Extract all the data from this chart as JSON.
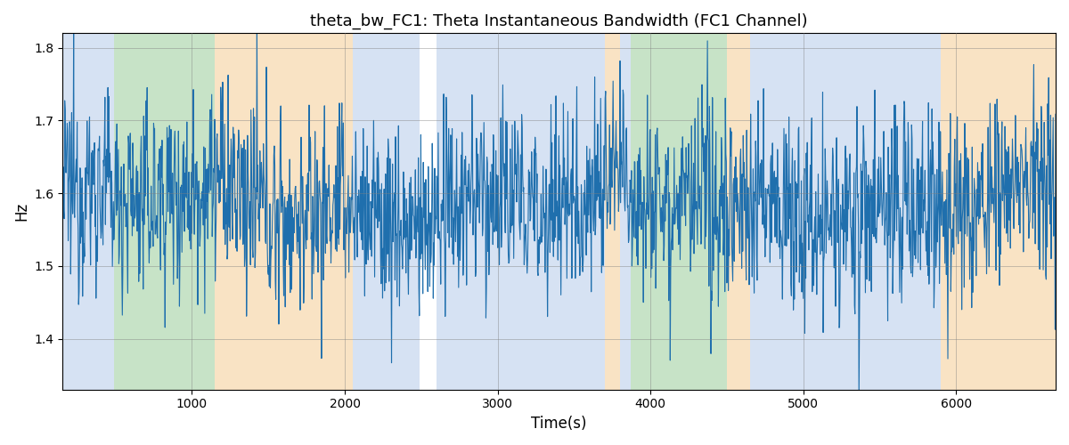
{
  "title": "theta_bw_FC1: Theta Instantaneous Bandwidth (FC1 Channel)",
  "xlabel": "Time(s)",
  "ylabel": "Hz",
  "xlim": [
    155,
    6650
  ],
  "ylim": [
    1.33,
    1.82
  ],
  "yticks": [
    1.4,
    1.5,
    1.6,
    1.7,
    1.8
  ],
  "xticks": [
    1000,
    2000,
    3000,
    4000,
    5000,
    6000
  ],
  "line_color": "#1f6fad",
  "line_width": 0.8,
  "seed": 12345,
  "n_points": 2000,
  "t_start": 155,
  "t_end": 6650,
  "background_regions": [
    {
      "start": 155,
      "end": 490,
      "color": "#aec6e8",
      "alpha": 0.5
    },
    {
      "start": 490,
      "end": 1150,
      "color": "#90c890",
      "alpha": 0.5
    },
    {
      "start": 1150,
      "end": 2050,
      "color": "#f5c88a",
      "alpha": 0.5
    },
    {
      "start": 2050,
      "end": 2490,
      "color": "#aec6e8",
      "alpha": 0.5
    },
    {
      "start": 2490,
      "end": 2600,
      "color": "#ffffff",
      "alpha": 0.0
    },
    {
      "start": 2600,
      "end": 3700,
      "color": "#aec6e8",
      "alpha": 0.5
    },
    {
      "start": 3700,
      "end": 3800,
      "color": "#f5c88a",
      "alpha": 0.5
    },
    {
      "start": 3800,
      "end": 3870,
      "color": "#aec6e8",
      "alpha": 0.5
    },
    {
      "start": 3870,
      "end": 4500,
      "color": "#90c890",
      "alpha": 0.5
    },
    {
      "start": 4500,
      "end": 4650,
      "color": "#f5c88a",
      "alpha": 0.5
    },
    {
      "start": 4650,
      "end": 5900,
      "color": "#aec6e8",
      "alpha": 0.5
    },
    {
      "start": 5900,
      "end": 6650,
      "color": "#f5c88a",
      "alpha": 0.5
    }
  ],
  "figsize": [
    12.0,
    5.0
  ],
  "dpi": 100
}
